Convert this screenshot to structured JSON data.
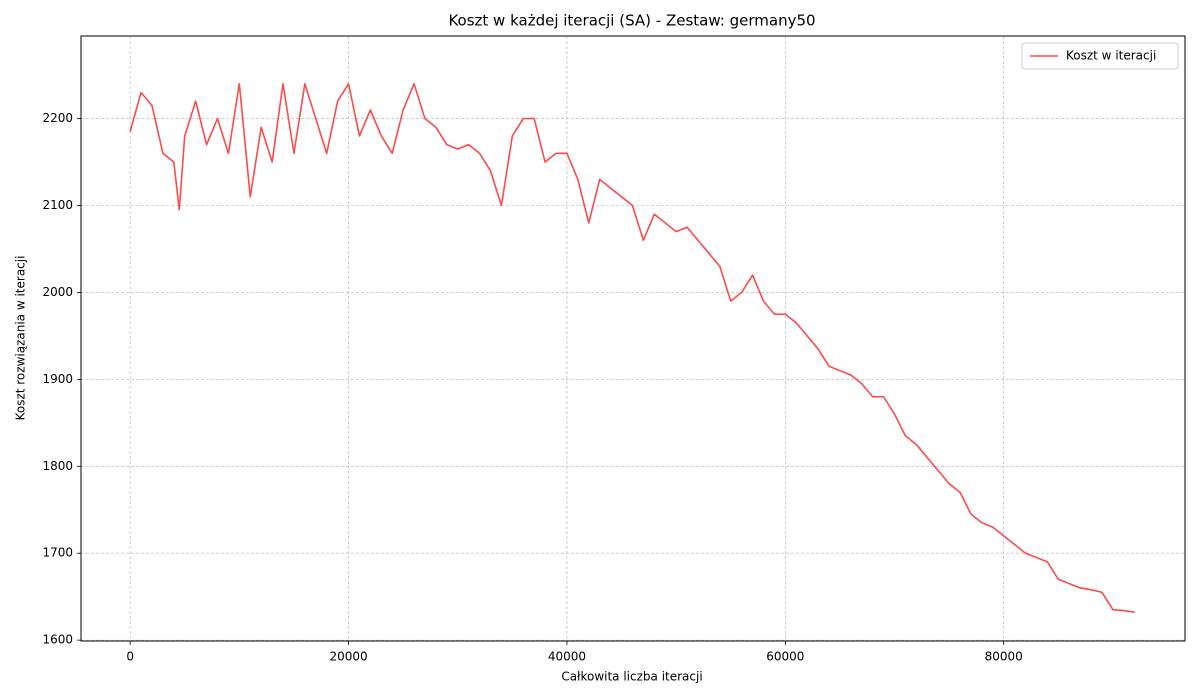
{
  "chart_data": {
    "type": "line",
    "title": "Koszt w każdej iteracji (SA) - Zestaw: germany50",
    "xlabel": "Całkowita liczba iteracji",
    "ylabel": "Koszt rozwiązania w iteracji",
    "x": [
      0,
      1000,
      2000,
      3000,
      4000,
      4500,
      5000,
      6000,
      7000,
      8000,
      9000,
      10000,
      11000,
      12000,
      13000,
      14000,
      15000,
      16000,
      17000,
      18000,
      19000,
      20000,
      21000,
      22000,
      23000,
      24000,
      25000,
      26000,
      27000,
      28000,
      29000,
      30000,
      31000,
      32000,
      33000,
      34000,
      35000,
      36000,
      37000,
      38000,
      39000,
      40000,
      41000,
      42000,
      43000,
      44000,
      45000,
      46000,
      47000,
      48000,
      49000,
      50000,
      51000,
      52000,
      53000,
      54000,
      55000,
      56000,
      57000,
      58000,
      59000,
      60000,
      61000,
      62000,
      63000,
      64000,
      65000,
      66000,
      67000,
      68000,
      69000,
      70000,
      71000,
      72000,
      73000,
      74000,
      75000,
      76000,
      77000,
      78000,
      79000,
      80000,
      81000,
      82000,
      83000,
      84000,
      85000,
      86000,
      87000,
      88000,
      89000,
      90000,
      91000,
      92000
    ],
    "series": [
      {
        "name": "Koszt w iteracji",
        "color": "#ff4a4a",
        "values": [
          2185,
          2230,
          2215,
          2160,
          2150,
          2095,
          2180,
          2220,
          2170,
          2200,
          2160,
          2240,
          2110,
          2190,
          2150,
          2240,
          2160,
          2240,
          2200,
          2160,
          2220,
          2240,
          2180,
          2210,
          2180,
          2160,
          2210,
          2240,
          2200,
          2190,
          2170,
          2165,
          2170,
          2160,
          2140,
          2100,
          2180,
          2200,
          2200,
          2150,
          2160,
          2160,
          2130,
          2080,
          2130,
          2120,
          2110,
          2100,
          2060,
          2090,
          2080,
          2070,
          2075,
          2060,
          2045,
          2030,
          1990,
          2000,
          2020,
          1990,
          1975,
          1975,
          1965,
          1950,
          1935,
          1915,
          1910,
          1905,
          1895,
          1880,
          1880,
          1860,
          1835,
          1825,
          1810,
          1795,
          1780,
          1770,
          1745,
          1735,
          1730,
          1720,
          1710,
          1700,
          1695,
          1690,
          1670,
          1665,
          1660,
          1658,
          1655,
          1635,
          1634,
          1632
        ]
      }
    ],
    "xlim": [
      -4500,
      96600
    ],
    "ylim": [
      1599,
      2295
    ],
    "xticks": [
      0,
      20000,
      40000,
      60000,
      80000
    ],
    "yticks": [
      1600,
      1700,
      1800,
      1900,
      2000,
      2100,
      2200
    ],
    "grid": true,
    "legend": "upper right"
  }
}
